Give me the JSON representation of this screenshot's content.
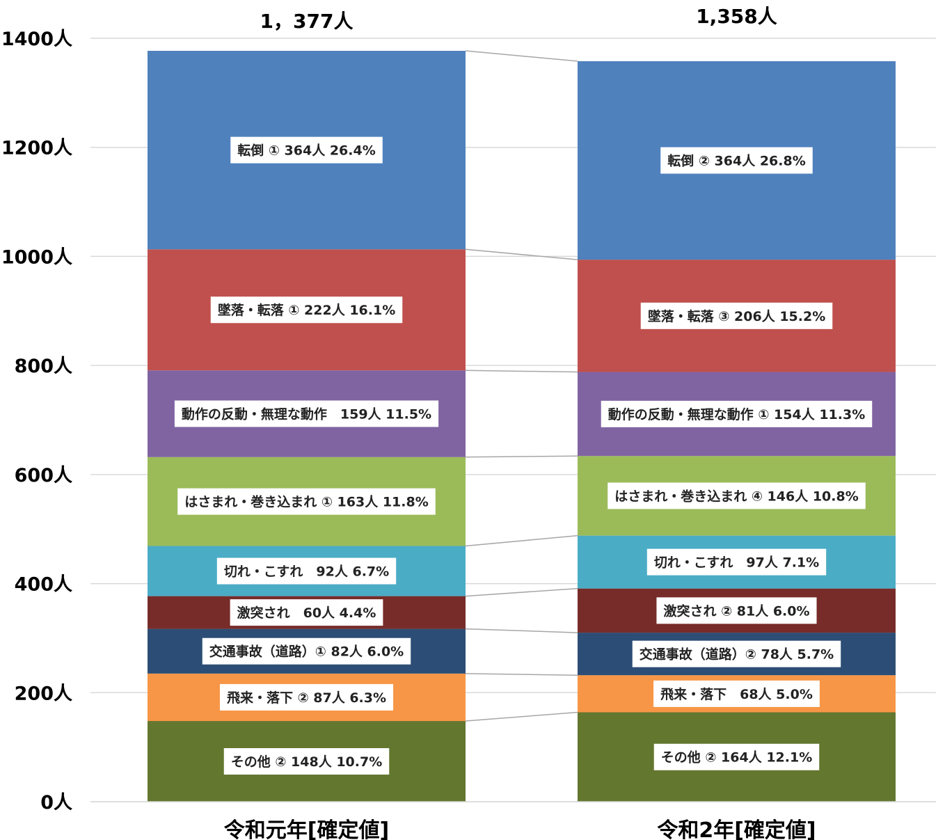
{
  "chart_data": {
    "type": "bar",
    "stacked": true,
    "categories": [
      "令和元年[確定値]",
      "令和2年[確定値]"
    ],
    "totals": [
      "1，377人",
      "1,358人"
    ],
    "ylim": [
      0,
      1400
    ],
    "yticks": [
      {
        "value": 0,
        "label": "0人"
      },
      {
        "value": 200,
        "label": "200人"
      },
      {
        "value": 400,
        "label": "400人"
      },
      {
        "value": 600,
        "label": "600人"
      },
      {
        "value": 800,
        "label": "800人"
      },
      {
        "value": 1000,
        "label": "1000人"
      },
      {
        "value": 1200,
        "label": "1200人"
      },
      {
        "value": 1400,
        "label": "1400人"
      }
    ],
    "grid": true,
    "series_lines": true,
    "series": [
      {
        "name": "その他",
        "color": "#63772F",
        "values": [
          148,
          164
        ],
        "labels": [
          "その他 ② 148人 10.7%",
          "その他 ② 164人 12.1%"
        ]
      },
      {
        "name": "飛来・落下",
        "color": "#F79646",
        "values": [
          87,
          68
        ],
        "labels": [
          "飛来・落下 ② 87人 6.3%",
          "飛来・落下　68人 5.0%"
        ]
      },
      {
        "name": "交通事故（道路）",
        "color": "#2C4D75",
        "values": [
          82,
          78
        ],
        "labels": [
          "交通事故（道路）① 82人 6.0%",
          "交通事故（道路）② 78人 5.7%"
        ]
      },
      {
        "name": "激突され",
        "color": "#772C2A",
        "values": [
          60,
          81
        ],
        "labels": [
          "激突され　60人 4.4%",
          "激突され ② 81人 6.0%"
        ]
      },
      {
        "name": "切れ・こすれ",
        "color": "#4BACC6",
        "values": [
          92,
          97
        ],
        "labels": [
          "切れ・こすれ　92人 6.7%",
          "切れ・こすれ　97人 7.1%"
        ]
      },
      {
        "name": "はさまれ・巻き込まれ",
        "color": "#9BBB59",
        "values": [
          163,
          146
        ],
        "labels": [
          "はさまれ・巻き込まれ ① 163人 11.8%",
          "はさまれ・巻き込まれ ④ 146人 10.8%"
        ]
      },
      {
        "name": "動作の反動・無理な動作",
        "color": "#8064A2",
        "values": [
          159,
          154
        ],
        "labels": [
          "動作の反動・無理な動作　159人 11.5%",
          "動作の反動・無理な動作 ① 154人 11.3%"
        ]
      },
      {
        "name": "墜落・転落",
        "color": "#C0504D",
        "values": [
          222,
          206
        ],
        "labels": [
          "墜落・転落 ① 222人 16.1%",
          "墜落・転落 ③ 206人 15.2%"
        ]
      },
      {
        "name": "転倒",
        "color": "#4F81BD",
        "values": [
          364,
          364
        ],
        "labels": [
          "転倒 ① 364人 26.4%",
          "転倒 ② 364人 26.8%"
        ]
      }
    ]
  }
}
